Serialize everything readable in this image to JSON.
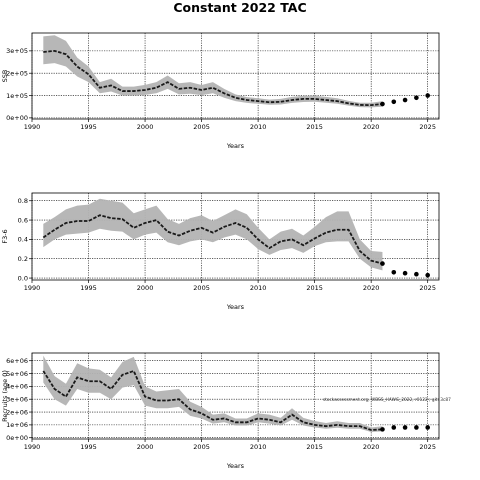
{
  "figure": {
    "title": "Constant 2022 TAC",
    "annotation": "stockassessment.org, WBSS_HAWG_2022, r0122 ; git: 3c87"
  },
  "chart_data": [
    {
      "type": "line",
      "ylabel": "SSB",
      "xlabel": "Years",
      "xlim": [
        1990,
        2026
      ],
      "ylim": [
        -5000,
        380000
      ],
      "x_ticks": [
        1990,
        1995,
        2000,
        2005,
        2010,
        2015,
        2020,
        2025
      ],
      "x_tick_labels": [
        "1990",
        "1995",
        "2000",
        "2005",
        "2010",
        "2015",
        "2020",
        "2025"
      ],
      "y_ticks": [
        0,
        100000,
        200000,
        300000
      ],
      "y_tick_labels": [
        "0e+00",
        "1e+05",
        "2e+05",
        "3e+05"
      ],
      "grid": true,
      "series": [
        {
          "kind": "estimate_with_ci",
          "x": [
            1991,
            1992,
            1993,
            1994,
            1995,
            1996,
            1997,
            1998,
            1999,
            2000,
            2001,
            2002,
            2003,
            2004,
            2005,
            2006,
            2007,
            2008,
            2009,
            2010,
            2011,
            2012,
            2013,
            2014,
            2015,
            2016,
            2017,
            2018,
            2019,
            2020,
            2021
          ],
          "y": [
            295000,
            300000,
            285000,
            230000,
            195000,
            135000,
            145000,
            120000,
            120000,
            125000,
            135000,
            160000,
            130000,
            135000,
            125000,
            135000,
            110000,
            90000,
            80000,
            75000,
            70000,
            72000,
            80000,
            85000,
            85000,
            80000,
            75000,
            65000,
            58000,
            57000,
            62000
          ],
          "lower": [
            240000,
            245000,
            230000,
            185000,
            160000,
            110000,
            118000,
            100000,
            100000,
            103000,
            110000,
            130000,
            105000,
            108000,
            102000,
            110000,
            90000,
            75000,
            67000,
            63000,
            59000,
            60000,
            67000,
            71000,
            72000,
            68000,
            63000,
            55000,
            48000,
            47000,
            50000
          ],
          "upper": [
            365000,
            370000,
            345000,
            270000,
            230000,
            160000,
            175000,
            140000,
            140000,
            148000,
            160000,
            190000,
            155000,
            160000,
            147000,
            160000,
            130000,
            105000,
            93000,
            88000,
            82000,
            85000,
            94000,
            99000,
            99000,
            94000,
            88000,
            76000,
            68000,
            68000,
            75000
          ]
        },
        {
          "kind": "forecast_points",
          "x": [
            2021,
            2022,
            2023,
            2024,
            2025
          ],
          "y": [
            62000,
            72000,
            80000,
            90000,
            100000
          ]
        }
      ]
    },
    {
      "type": "line",
      "ylabel": "F3-6",
      "xlabel": "Years",
      "xlim": [
        1990,
        2026
      ],
      "ylim": [
        -0.02,
        0.88
      ],
      "x_ticks": [
        1990,
        1995,
        2000,
        2005,
        2010,
        2015,
        2020,
        2025
      ],
      "x_tick_labels": [
        "1990",
        "1995",
        "2000",
        "2005",
        "2010",
        "2015",
        "2020",
        "2025"
      ],
      "y_ticks": [
        0,
        0.2,
        0.4,
        0.6,
        0.8
      ],
      "y_tick_labels": [
        "0.0",
        "0.2",
        "0.4",
        "0.6",
        "0.8"
      ],
      "grid": true,
      "series": [
        {
          "kind": "estimate_with_ci",
          "x": [
            1991,
            1992,
            1993,
            1994,
            1995,
            1996,
            1997,
            1998,
            1999,
            2000,
            2001,
            2002,
            2003,
            2004,
            2005,
            2006,
            2007,
            2008,
            2009,
            2010,
            2011,
            2012,
            2013,
            2014,
            2015,
            2016,
            2017,
            2018,
            2019,
            2020,
            2021
          ],
          "y": [
            0.42,
            0.5,
            0.57,
            0.59,
            0.59,
            0.65,
            0.62,
            0.61,
            0.52,
            0.57,
            0.6,
            0.48,
            0.44,
            0.49,
            0.52,
            0.47,
            0.53,
            0.57,
            0.52,
            0.4,
            0.31,
            0.38,
            0.4,
            0.34,
            0.41,
            0.47,
            0.5,
            0.5,
            0.28,
            0.18,
            0.15
          ],
          "lower": [
            0.32,
            0.4,
            0.45,
            0.46,
            0.47,
            0.51,
            0.49,
            0.48,
            0.4,
            0.45,
            0.47,
            0.37,
            0.34,
            0.38,
            0.4,
            0.37,
            0.42,
            0.45,
            0.4,
            0.3,
            0.24,
            0.29,
            0.31,
            0.26,
            0.33,
            0.37,
            0.38,
            0.38,
            0.2,
            0.11,
            0.08
          ],
          "upper": [
            0.56,
            0.63,
            0.71,
            0.75,
            0.76,
            0.82,
            0.8,
            0.78,
            0.67,
            0.71,
            0.75,
            0.61,
            0.56,
            0.62,
            0.65,
            0.59,
            0.65,
            0.71,
            0.66,
            0.52,
            0.4,
            0.48,
            0.51,
            0.44,
            0.53,
            0.63,
            0.69,
            0.69,
            0.4,
            0.28,
            0.27
          ]
        },
        {
          "kind": "forecast_points",
          "x": [
            2021,
            2022,
            2023,
            2024,
            2025
          ],
          "y": [
            0.15,
            0.06,
            0.05,
            0.04,
            0.03
          ]
        }
      ]
    },
    {
      "type": "line",
      "ylabel": "Recruits (age 0)",
      "xlabel": "Years",
      "xlim": [
        1990,
        2026
      ],
      "ylim": [
        -100000,
        6600000
      ],
      "x_ticks": [
        1990,
        1995,
        2000,
        2005,
        2010,
        2015,
        2020,
        2025
      ],
      "x_tick_labels": [
        "1990",
        "1995",
        "2000",
        "2005",
        "2010",
        "2015",
        "2020",
        "2025"
      ],
      "y_ticks": [
        0,
        1000000,
        2000000,
        3000000,
        4000000,
        5000000,
        6000000
      ],
      "y_tick_labels": [
        "0e+00",
        "1e+06",
        "2e+06",
        "3e+06",
        "4e+06",
        "5e+06",
        "6e+06"
      ],
      "grid": true,
      "series": [
        {
          "kind": "estimate_with_ci",
          "x": [
            1991,
            1992,
            1993,
            1994,
            1995,
            1996,
            1997,
            1998,
            1999,
            2000,
            2001,
            2002,
            2003,
            2004,
            2005,
            2006,
            2007,
            2008,
            2009,
            2010,
            2011,
            2012,
            2013,
            2014,
            2015,
            2016,
            2017,
            2018,
            2019,
            2020,
            2021
          ],
          "y": [
            5200000,
            3800000,
            3200000,
            4700000,
            4400000,
            4400000,
            3800000,
            4900000,
            5200000,
            3200000,
            2900000,
            2900000,
            3000000,
            2200000,
            1900000,
            1400000,
            1500000,
            1200000,
            1200000,
            1500000,
            1400000,
            1200000,
            1800000,
            1200000,
            1000000,
            900000,
            1000000,
            900000,
            900000,
            600000,
            650000
          ],
          "lower": [
            4300000,
            3000000,
            2500000,
            3800000,
            3500000,
            3500000,
            3000000,
            3900000,
            4100000,
            2500000,
            2300000,
            2300000,
            2400000,
            1700000,
            1500000,
            1100000,
            1200000,
            950000,
            950000,
            1200000,
            1100000,
            950000,
            1400000,
            950000,
            800000,
            700000,
            780000,
            700000,
            700000,
            450000,
            500000
          ],
          "upper": [
            6400000,
            4800000,
            4200000,
            5800000,
            5400000,
            5300000,
            4700000,
            5900000,
            6300000,
            4000000,
            3600000,
            3700000,
            3800000,
            2800000,
            2400000,
            1800000,
            1900000,
            1500000,
            1500000,
            1900000,
            1800000,
            1550000,
            2300000,
            1550000,
            1300000,
            1150000,
            1280000,
            1150000,
            1150000,
            800000,
            900000
          ]
        },
        {
          "kind": "forecast_points",
          "x": [
            2021,
            2022,
            2023,
            2024,
            2025
          ],
          "y": [
            650000,
            800000,
            800000,
            800000,
            800000
          ]
        }
      ]
    }
  ]
}
